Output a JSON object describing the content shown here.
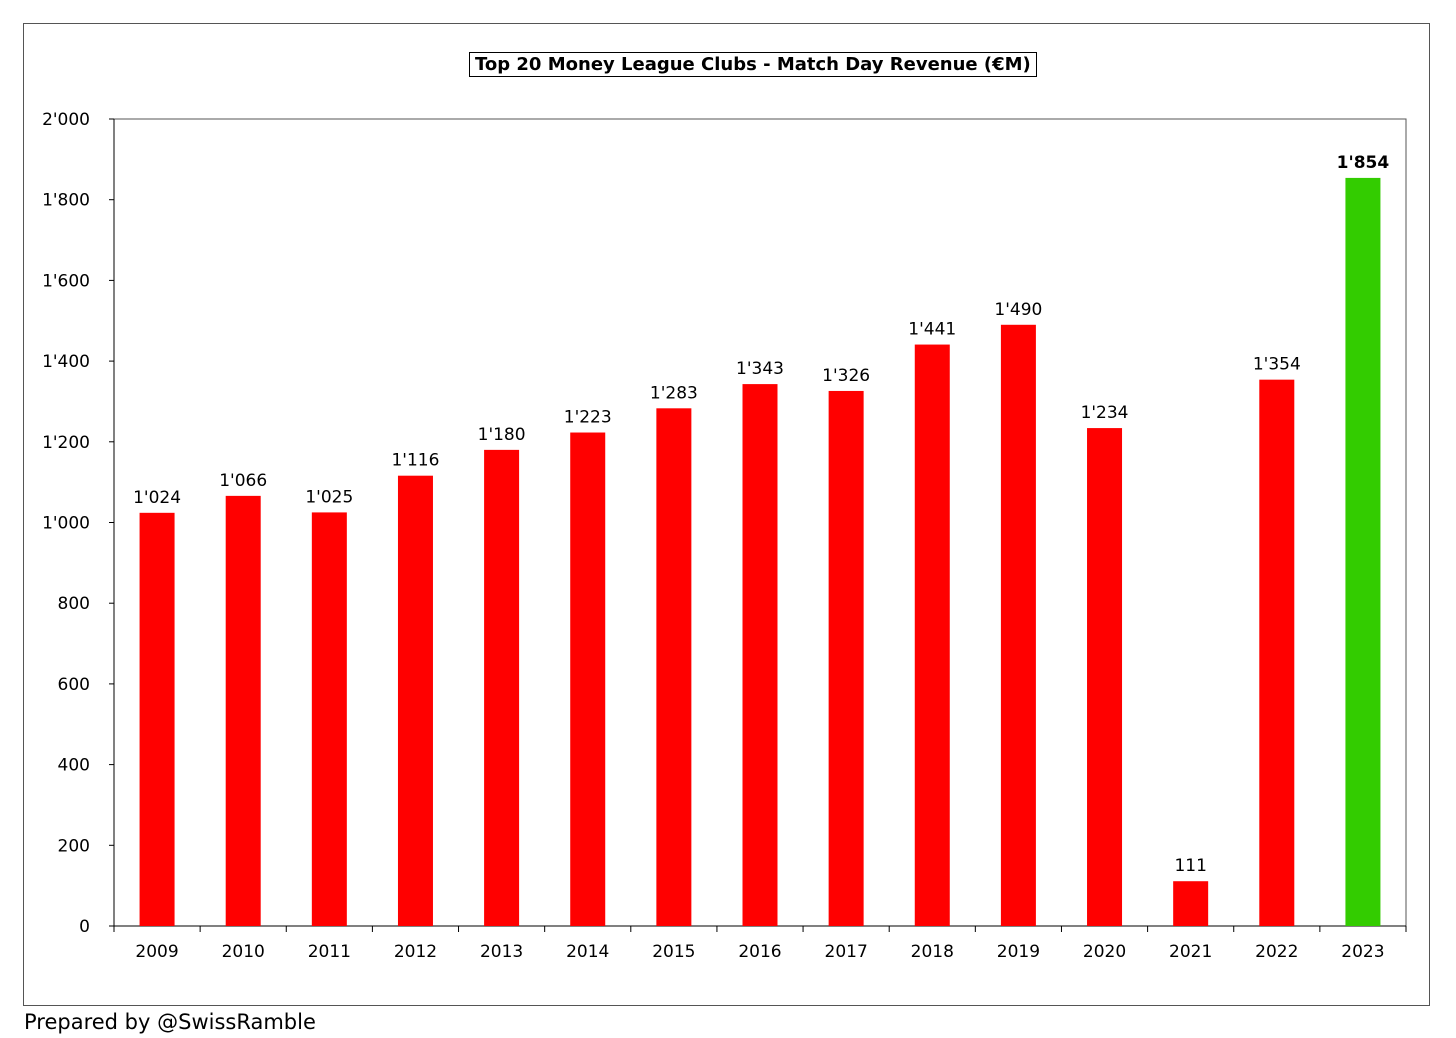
{
  "chart_data": {
    "type": "bar",
    "title": "Top 20 Money League Clubs - Match Day Revenue (€M)",
    "xlabel": "",
    "ylabel": "",
    "ylim": [
      0,
      2000
    ],
    "yticks": [
      0,
      200,
      400,
      600,
      800,
      1000,
      1200,
      1400,
      1600,
      1800,
      2000
    ],
    "ytick_labels": [
      "0",
      "200",
      "400",
      "600",
      "800",
      "1'000",
      "1'200",
      "1'400",
      "1'600",
      "1'800",
      "2'000"
    ],
    "grid": false,
    "legend": "none",
    "categories": [
      "2009",
      "2010",
      "2011",
      "2012",
      "2013",
      "2014",
      "2015",
      "2016",
      "2017",
      "2018",
      "2019",
      "2020",
      "2021",
      "2022",
      "2023"
    ],
    "values": [
      1024,
      1066,
      1025,
      1116,
      1180,
      1223,
      1283,
      1343,
      1326,
      1441,
      1490,
      1234,
      111,
      1354,
      1854
    ],
    "value_labels": [
      "1'024",
      "1'066",
      "1'025",
      "1'116",
      "1'180",
      "1'223",
      "1'283",
      "1'343",
      "1'326",
      "1'441",
      "1'490",
      "1'234",
      "111",
      "1'354",
      "1'854"
    ],
    "highlighted_category": "2023",
    "colors": {
      "bar": "#ff0000",
      "highlight_bar": "#33cc00",
      "axis": "#000000"
    }
  },
  "footer": {
    "credit": "Prepared by @SwissRamble"
  }
}
